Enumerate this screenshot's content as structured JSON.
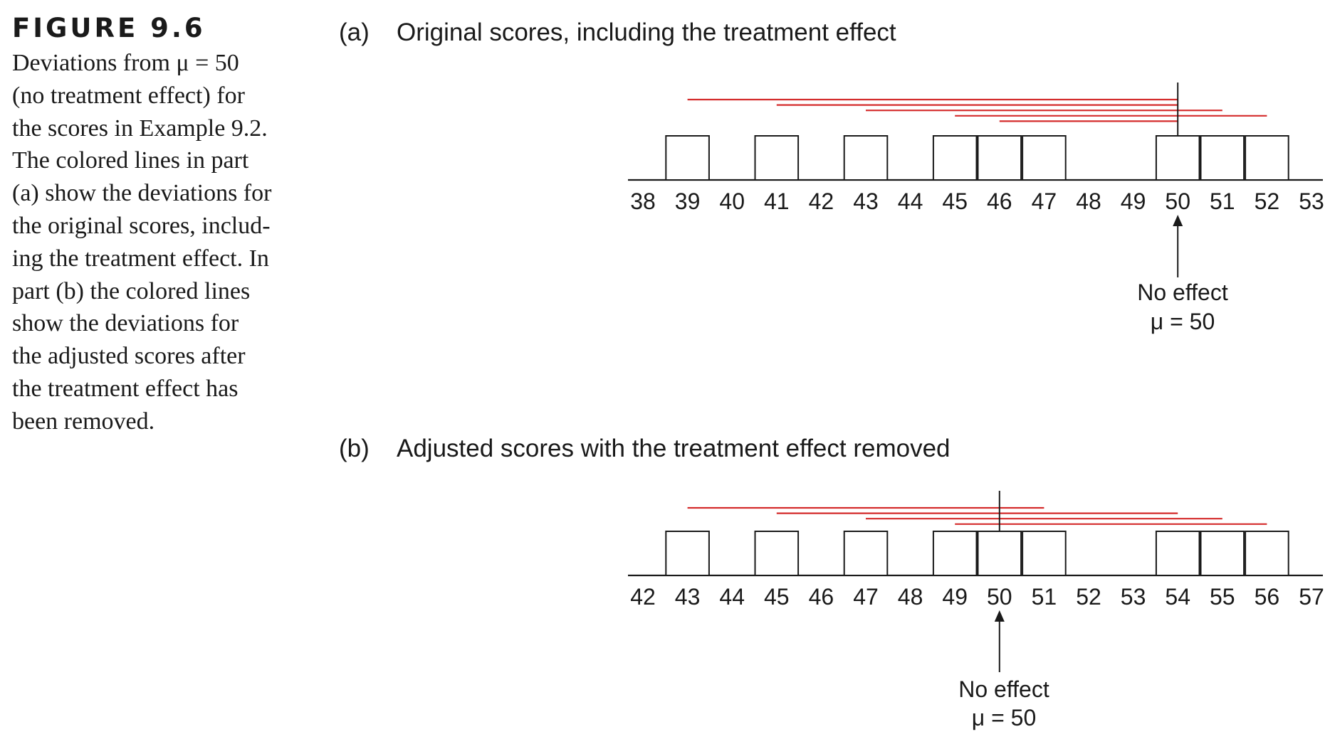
{
  "figure": {
    "label": "FIGURE 9.6",
    "caption_lines": [
      "Deviations from μ = 50",
      "(no treatment effect) for",
      "the scores in Example 9.2.",
      "The colored lines in part",
      "(a) show the deviations for",
      "the original scores, includ-",
      "ing the treatment effect. In",
      "part (b) the colored lines",
      "show the deviations for",
      "the adjusted scores after",
      "the treatment effect has",
      "been removed."
    ]
  },
  "colors": {
    "deviation_line": "#d42b2b",
    "ink": "#1a1a1a"
  },
  "chart_data": [
    {
      "type": "histogram",
      "panel_label": "(a)",
      "title": "Original scores, including the treatment effect",
      "x_ticks": [
        38,
        39,
        40,
        41,
        42,
        43,
        44,
        45,
        46,
        47,
        48,
        49,
        50,
        51,
        52,
        53
      ],
      "scores": [
        39,
        41,
        43,
        45,
        46,
        47,
        50,
        51,
        52
      ],
      "reference_value": 50,
      "annotation": [
        "No effect",
        "μ = 50"
      ]
    },
    {
      "type": "histogram",
      "panel_label": "(b)",
      "title": "Adjusted scores with the treatment effect removed",
      "x_ticks": [
        42,
        43,
        44,
        45,
        46,
        47,
        48,
        49,
        50,
        51,
        52,
        53,
        54,
        55,
        56,
        57
      ],
      "scores": [
        43,
        45,
        47,
        49,
        50,
        51,
        54,
        55,
        56
      ],
      "reference_value": 50,
      "annotation": [
        "No effect",
        "μ = 50"
      ]
    }
  ]
}
